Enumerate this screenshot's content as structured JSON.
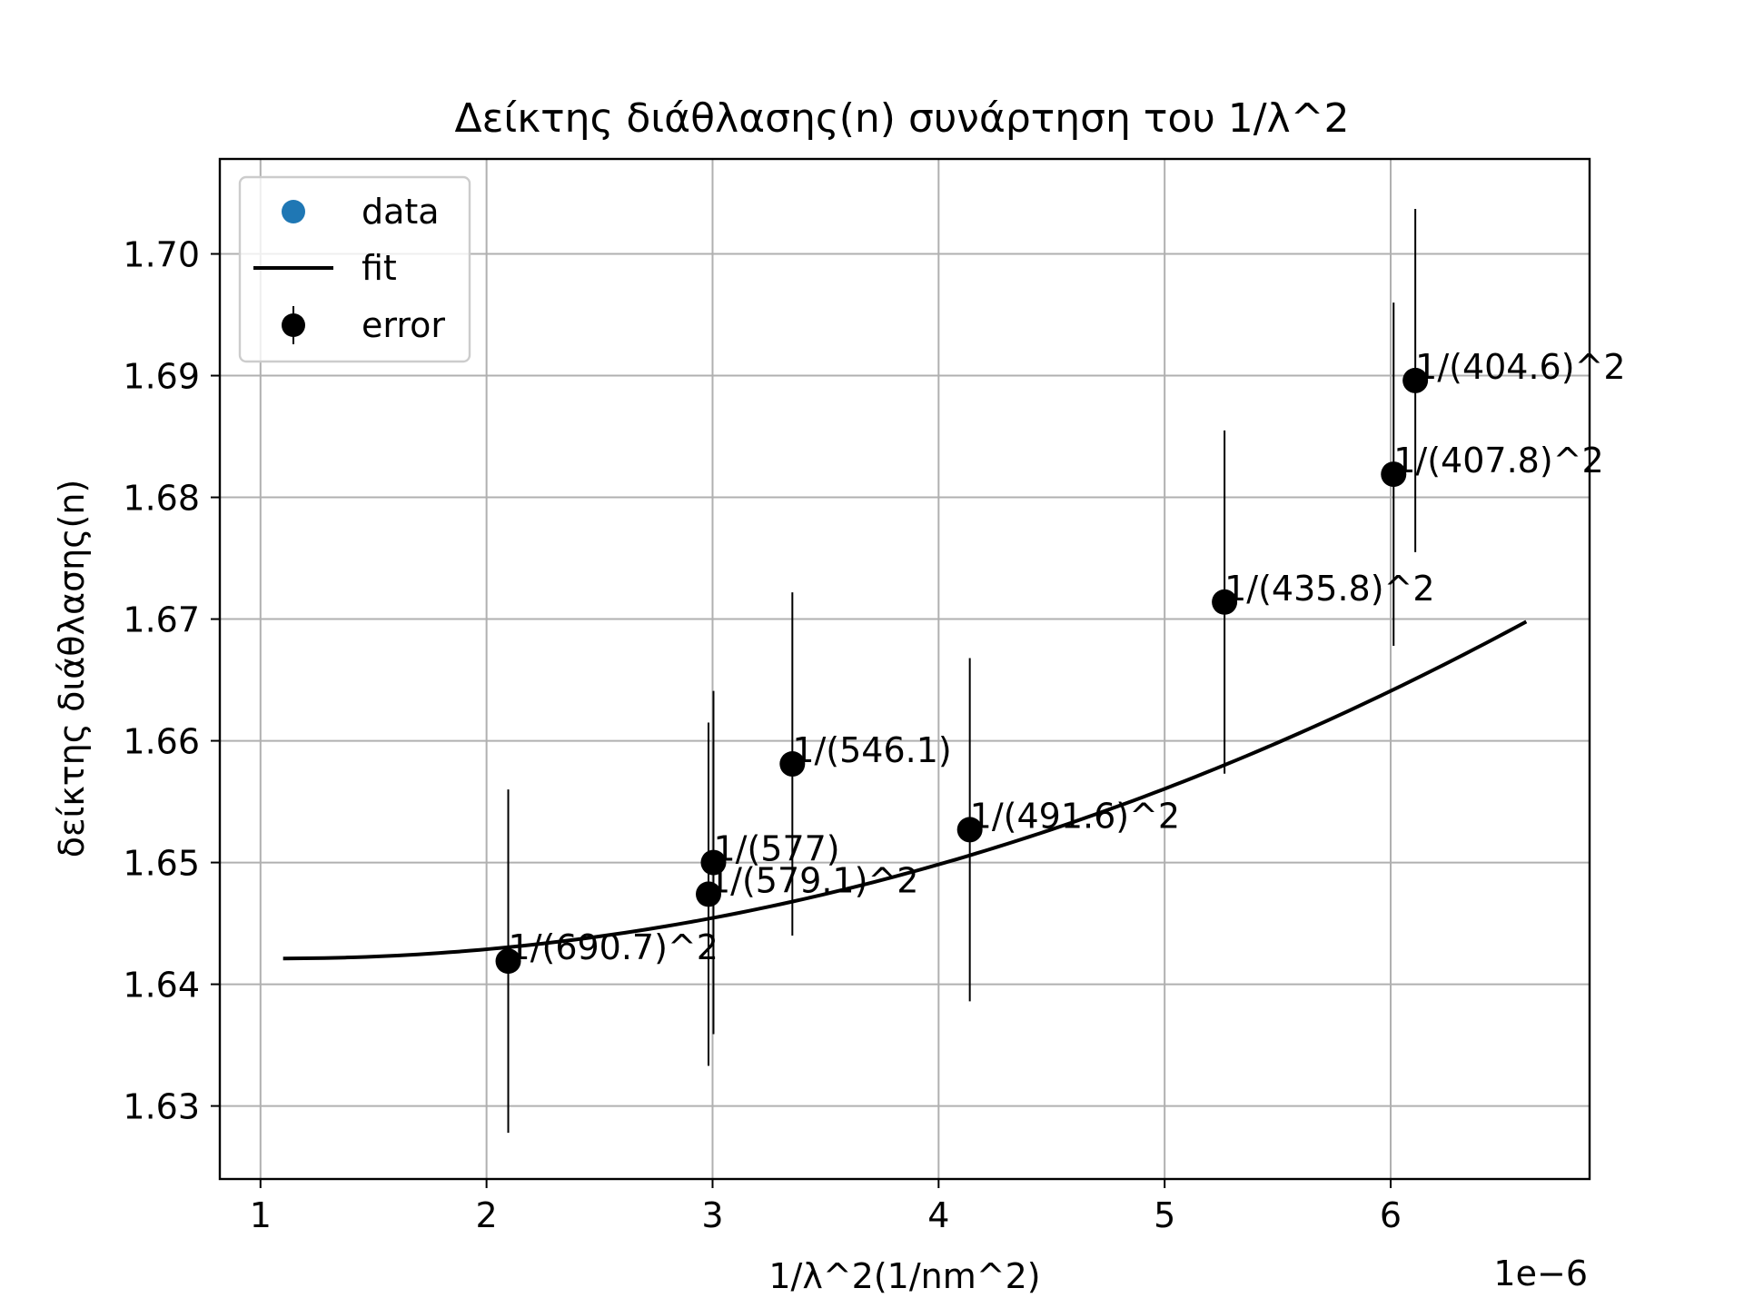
{
  "chart_data": {
    "type": "scatter",
    "title": "Δείκτης διάθλασης(n) συνάρτηση του 1/λ^2",
    "xlabel": "1/λ^2(1/nm^2)",
    "ylabel": "δείκτης διάθλασης(n)",
    "x_offset_label": "1e−6",
    "x_scale": 1e-06,
    "xlim": [
      0.82,
      6.88
    ],
    "ylim": [
      1.624,
      1.7078
    ],
    "xticks": [
      1,
      2,
      3,
      4,
      5,
      6
    ],
    "xtick_labels": [
      "1",
      "2",
      "3",
      "4",
      "5",
      "6"
    ],
    "yticks": [
      1.63,
      1.64,
      1.65,
      1.66,
      1.67,
      1.68,
      1.69,
      1.7
    ],
    "ytick_labels": [
      "1.63",
      "1.64",
      "1.65",
      "1.66",
      "1.67",
      "1.68",
      "1.69",
      "1.70"
    ],
    "grid": true,
    "legend": {
      "placement": "top-left",
      "entries": [
        {
          "label": "data",
          "kind": "marker",
          "color": "#1f77b4"
        },
        {
          "label": "fit",
          "kind": "line",
          "color": "#000000"
        },
        {
          "label": "error",
          "kind": "errorbar",
          "color": "#000000"
        }
      ]
    },
    "points": [
      {
        "label": "1/(690.7)^2",
        "x": 2.096,
        "y": 1.6419,
        "err": 0.0141
      },
      {
        "label": "1/(579.1)^2",
        "x": 2.982,
        "y": 1.6474,
        "err": 0.0141
      },
      {
        "label": "1/(577)",
        "x": 3.004,
        "y": 1.65,
        "err": 0.0141
      },
      {
        "label": "1/(546.1)",
        "x": 3.353,
        "y": 1.6581,
        "err": 0.0141
      },
      {
        "label": "1/(491.6)^2",
        "x": 4.138,
        "y": 1.6527,
        "err": 0.0141
      },
      {
        "label": "1/(435.8)^2",
        "x": 5.265,
        "y": 1.6714,
        "err": 0.0141
      },
      {
        "label": "1/(407.8)^2",
        "x": 6.013,
        "y": 1.6819,
        "err": 0.0141
      },
      {
        "label": "1/(404.6)^2",
        "x": 6.109,
        "y": 1.6896,
        "err": 0.0141
      }
    ],
    "fit": {
      "model": "quadratic",
      "x_range": [
        1.1,
        6.6
      ],
      "coefficients": {
        "a": 0.0009113,
        "b": -0.0019853,
        "c": 1.6432
      }
    }
  }
}
